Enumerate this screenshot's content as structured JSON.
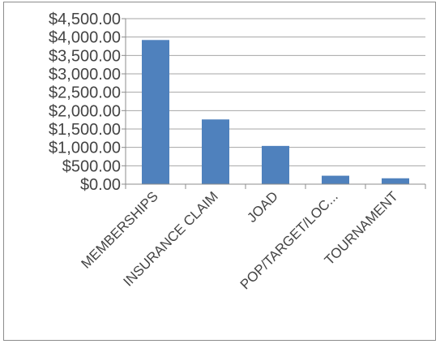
{
  "chart_data": {
    "type": "bar",
    "categories": [
      "MEMBERSHIPS",
      "INSURANCE CLAIM",
      "JOAD",
      "POP/TARGET/LOC...",
      "TOURNAMENT"
    ],
    "values": [
      3920,
      1760,
      1040,
      230,
      160
    ],
    "ylim": [
      0,
      4500
    ],
    "yticks": [
      0,
      500,
      1000,
      1500,
      2000,
      2500,
      3000,
      3500,
      4000,
      4500
    ],
    "ytick_labels": [
      "$0.00",
      "$500.00",
      "$1,000.00",
      "$1,500.00",
      "$2,000.00",
      "$2,500.00",
      "$3,000.00",
      "$3,500.00",
      "$4,000.00",
      "$4,500.00"
    ],
    "grid": true,
    "bar_color": "#4f81bd",
    "title": "",
    "xlabel": "",
    "ylabel": ""
  }
}
